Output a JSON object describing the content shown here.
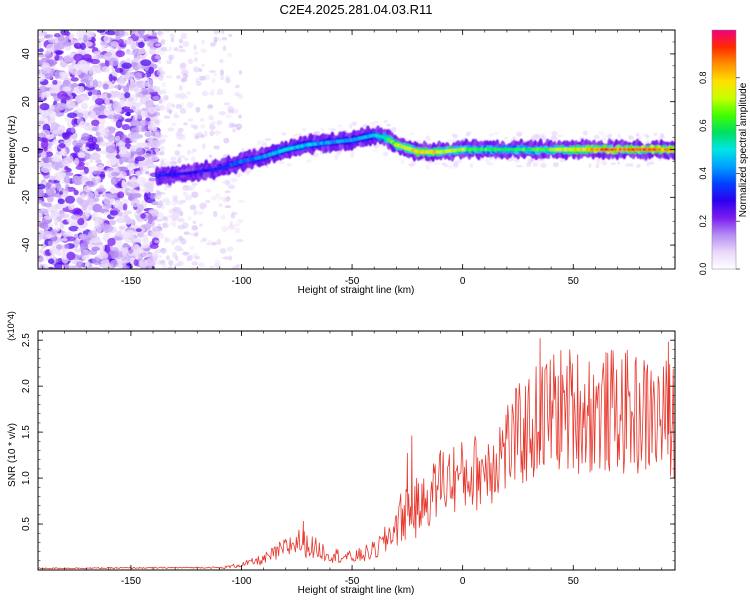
{
  "title": "C2E4.2025.281.04.03.R11",
  "colors": {
    "line": "#e8392f",
    "colormap": [
      "#ffffff",
      "#e9d8fb",
      "#b48cf2",
      "#7a1cf0",
      "#2d00f0",
      "#0040ff",
      "#00a0ff",
      "#00e6e6",
      "#00e060",
      "#40ff00",
      "#c8ff00",
      "#ffe000",
      "#ff9000",
      "#ff2a00",
      "#f00080"
    ]
  },
  "chart_data": [
    {
      "type": "heatmap",
      "name": "spectrogram",
      "title": "C2E4.2025.281.04.03.R11",
      "xlabel": "Height of straight line (km)",
      "ylabel": "Frequency (Hz)",
      "xlim": [
        -192,
        96
      ],
      "ylim": [
        -50,
        50
      ],
      "xticks": [
        -150,
        -100,
        -50,
        0,
        50
      ],
      "xtick_labels": [
        "-150",
        "-100",
        "-50",
        "0",
        "50"
      ],
      "yticks": [
        -40,
        -20,
        0,
        20,
        40
      ],
      "ytick_labels": [
        "-40",
        "-20",
        "0",
        "20",
        "40"
      ],
      "colorbar": {
        "label": "Normalized spectral amplitude",
        "range": [
          0,
          1
        ],
        "ticks": [
          0,
          0.2,
          0.4,
          0.6,
          0.8
        ],
        "tick_labels": [
          "0.0",
          "0.2",
          "0.4",
          "0.6",
          "0.8"
        ]
      },
      "ridge": {
        "description": "dominant frequency trace vs height",
        "x": [
          -138,
          -125,
          -110,
          -100,
          -90,
          -80,
          -70,
          -60,
          -50,
          -40,
          -35,
          -30,
          -20,
          -10,
          0,
          20,
          40,
          60,
          80,
          96
        ],
        "y": [
          -11,
          -10,
          -8,
          -5,
          -3,
          0,
          2,
          3,
          4,
          6,
          5,
          2,
          -1,
          -1,
          0,
          0,
          0,
          0,
          0,
          0
        ],
        "peak_amplitude": [
          0.35,
          0.3,
          0.35,
          0.4,
          0.45,
          0.5,
          0.5,
          0.45,
          0.45,
          0.5,
          0.6,
          0.75,
          0.85,
          0.8,
          0.7,
          0.6,
          0.7,
          0.9,
          0.95,
          0.9
        ]
      },
      "noise_region_x": [
        -192,
        -138
      ]
    },
    {
      "type": "line",
      "name": "snr",
      "title": "",
      "xlabel": "Height of straight line (km)",
      "ylabel": "SNR (10 * v/v)",
      "y_multiplier": "(x10^4)",
      "xlim": [
        -192,
        96
      ],
      "ylim": [
        0,
        2.6
      ],
      "xticks": [
        -150,
        -100,
        -50,
        0,
        50
      ],
      "xtick_labels": [
        "-150",
        "-100",
        "-50",
        "0",
        "50"
      ],
      "yticks": [
        0.5,
        1.0,
        1.5,
        2.0,
        2.5
      ],
      "ytick_labels": [
        "0.5",
        "1.0",
        "1.5",
        "2.0",
        "2.5"
      ],
      "envelope": {
        "x": [
          -192,
          -110,
          -100,
          -90,
          -80,
          -75,
          -70,
          -60,
          -50,
          -40,
          -35,
          -30,
          -25,
          -20,
          -15,
          -10,
          -5,
          0,
          10,
          20,
          30,
          40,
          50,
          60,
          70,
          80,
          96
        ],
        "y": [
          0.01,
          0.02,
          0.06,
          0.12,
          0.25,
          0.33,
          0.28,
          0.18,
          0.14,
          0.22,
          0.33,
          0.52,
          0.7,
          0.7,
          0.82,
          1.0,
          1.05,
          1.05,
          1.15,
          1.4,
          1.6,
          1.8,
          1.82,
          1.78,
          1.8,
          1.75,
          1.7
        ]
      },
      "peaks": [
        {
          "x": -72,
          "y": 0.53
        },
        {
          "x": -25,
          "y": 1.27
        },
        {
          "x": -23,
          "y": 1.46
        },
        {
          "x": -10,
          "y": 1.3
        },
        {
          "x": 35,
          "y": 2.52
        },
        {
          "x": 93,
          "y": 2.48
        }
      ]
    }
  ]
}
